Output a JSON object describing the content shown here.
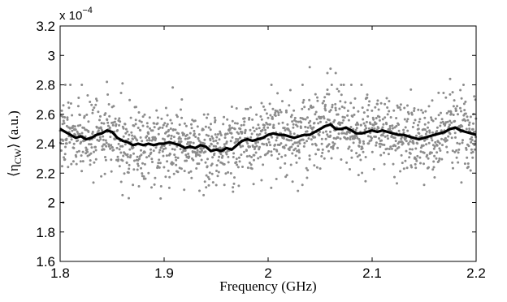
{
  "chart_data": {
    "type": "scatter",
    "title": "",
    "xlabel": "Frequency (GHz)",
    "ylabel": "⟨η",
    "ylabel_sub": "CW",
    "ylabel_rest": "⟩ (a.u.)",
    "y_multiplier_text": "x 10",
    "y_multiplier_exp": "−4",
    "xlim": [
      1.8,
      2.2
    ],
    "ylim": [
      1.6,
      3.2
    ],
    "x_ticks": [
      1.8,
      1.9,
      2.0,
      2.1,
      2.2
    ],
    "x_tick_labels": [
      "1.8",
      "1.9",
      "2",
      "2.1",
      "2.2"
    ],
    "y_ticks": [
      1.6,
      1.8,
      2.0,
      2.2,
      2.4,
      2.6,
      2.8,
      3.0,
      3.2
    ],
    "y_tick_labels": [
      "1.6",
      "1.8",
      "2",
      "2.2",
      "2.4",
      "2.6",
      "2.8",
      "3",
      "3.2"
    ],
    "grid": false,
    "scatter_color": "#8c8c8c",
    "line_color": "#000000",
    "series": [
      {
        "type": "line",
        "x": [
          1.8,
          1.805,
          1.81,
          1.815,
          1.82,
          1.825,
          1.83,
          1.835,
          1.84,
          1.845,
          1.85,
          1.855,
          1.86,
          1.865,
          1.87,
          1.875,
          1.88,
          1.885,
          1.89,
          1.895,
          1.9,
          1.905,
          1.91,
          1.915,
          1.92,
          1.925,
          1.93,
          1.935,
          1.94,
          1.945,
          1.95,
          1.955,
          1.96,
          1.965,
          1.97,
          1.975,
          1.98,
          1.985,
          1.99,
          1.995,
          2.0,
          2.005,
          2.01,
          2.015,
          2.02,
          2.025,
          2.03,
          2.035,
          2.04,
          2.045,
          2.05,
          2.055,
          2.06,
          2.065,
          2.07,
          2.075,
          2.08,
          2.085,
          2.09,
          2.095,
          2.1,
          2.105,
          2.11,
          2.115,
          2.12,
          2.125,
          2.13,
          2.135,
          2.14,
          2.145,
          2.15,
          2.155,
          2.16,
          2.165,
          2.17,
          2.175,
          2.18,
          2.185,
          2.19,
          2.195,
          2.2
        ],
        "values": [
          2.5,
          2.48,
          2.46,
          2.44,
          2.45,
          2.43,
          2.44,
          2.46,
          2.47,
          2.49,
          2.48,
          2.44,
          2.42,
          2.41,
          2.39,
          2.4,
          2.39,
          2.4,
          2.39,
          2.4,
          2.4,
          2.41,
          2.4,
          2.39,
          2.37,
          2.38,
          2.37,
          2.39,
          2.38,
          2.35,
          2.36,
          2.35,
          2.37,
          2.36,
          2.39,
          2.42,
          2.43,
          2.42,
          2.43,
          2.44,
          2.46,
          2.47,
          2.46,
          2.46,
          2.45,
          2.44,
          2.45,
          2.46,
          2.46,
          2.48,
          2.5,
          2.52,
          2.53,
          2.5,
          2.5,
          2.51,
          2.49,
          2.47,
          2.47,
          2.48,
          2.49,
          2.48,
          2.49,
          2.48,
          2.47,
          2.46,
          2.46,
          2.45,
          2.44,
          2.43,
          2.44,
          2.45,
          2.46,
          2.47,
          2.48,
          2.5,
          2.51,
          2.49,
          2.48,
          2.47,
          2.46
        ]
      },
      {
        "type": "scatter",
        "count": 1600,
        "seed": 7,
        "spread": 0.12,
        "outliers": [
          [
            2.04,
            2.92
          ],
          [
            2.06,
            2.91
          ],
          [
            2.065,
            2.88
          ],
          [
            2.175,
            2.84
          ],
          [
            1.86,
            2.81
          ],
          [
            1.845,
            2.82
          ],
          [
            2.057,
            2.88
          ],
          [
            1.805,
            2.8
          ],
          [
            1.866,
            2.03
          ],
          [
            1.86,
            2.05
          ],
          [
            1.803,
            2.0
          ],
          [
            1.938,
            2.05
          ],
          [
            1.905,
            2.1
          ],
          [
            1.934,
            2.08
          ],
          [
            2.003,
            2.1
          ],
          [
            2.033,
            2.12
          ],
          [
            1.958,
            2.12
          ],
          [
            2.15,
            2.12
          ],
          [
            1.87,
            2.12
          ],
          [
            2.008,
            2.16
          ]
        ]
      }
    ]
  }
}
